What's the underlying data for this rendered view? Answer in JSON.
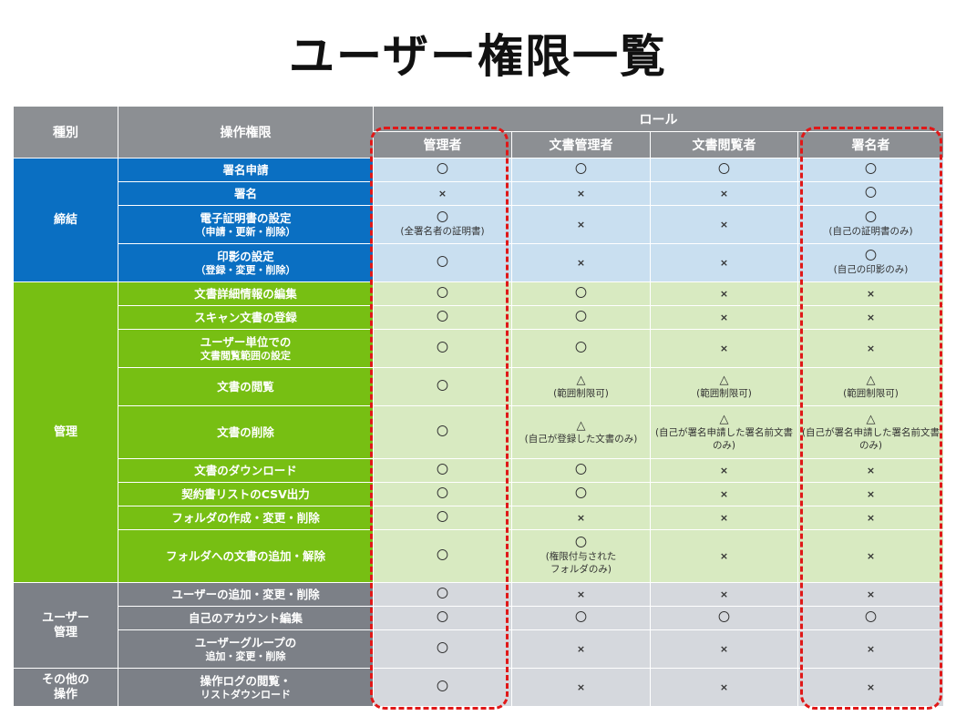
{
  "title": "ユーザー権限一覧",
  "headers": {
    "category": "種別",
    "operation": "操作権限",
    "role_group": "ロール",
    "roles": [
      "管理者",
      "文書管理者",
      "文書閲覧者",
      "署名者"
    ]
  },
  "symbols": {
    "yes": "〇",
    "no": "×",
    "partial": "△"
  },
  "groups": [
    {
      "label": "締結",
      "rows": [
        {
          "op": "署名申請",
          "cells": [
            {
              "sym": "〇"
            },
            {
              "sym": "〇"
            },
            {
              "sym": "〇"
            },
            {
              "sym": "〇"
            }
          ]
        },
        {
          "op": "署名",
          "cells": [
            {
              "sym": "×"
            },
            {
              "sym": "×"
            },
            {
              "sym": "×"
            },
            {
              "sym": "〇"
            }
          ]
        },
        {
          "op": "電子証明書の設定",
          "op_sub": "（申請・更新・削除）",
          "cells": [
            {
              "sym": "〇",
              "note": "(全署名者の証明書)"
            },
            {
              "sym": "×"
            },
            {
              "sym": "×"
            },
            {
              "sym": "〇",
              "note": "(自己の証明書のみ)"
            }
          ]
        },
        {
          "op": "印影の設定",
          "op_sub": "（登録・変更・削除）",
          "cells": [
            {
              "sym": "〇"
            },
            {
              "sym": "×"
            },
            {
              "sym": "×"
            },
            {
              "sym": "〇",
              "note": "(自己の印影のみ)"
            }
          ]
        }
      ]
    },
    {
      "label": "管理",
      "rows": [
        {
          "op": "文書詳細情報の編集",
          "cells": [
            {
              "sym": "〇"
            },
            {
              "sym": "〇"
            },
            {
              "sym": "×"
            },
            {
              "sym": "×"
            }
          ]
        },
        {
          "op": "スキャン文書の登録",
          "cells": [
            {
              "sym": "〇"
            },
            {
              "sym": "〇"
            },
            {
              "sym": "×"
            },
            {
              "sym": "×"
            }
          ]
        },
        {
          "op": "ユーザー単位での",
          "op_sub": "文書閲覧範囲の設定",
          "cells": [
            {
              "sym": "〇"
            },
            {
              "sym": "〇"
            },
            {
              "sym": "×"
            },
            {
              "sym": "×"
            }
          ]
        },
        {
          "op": "文書の閲覧",
          "cells": [
            {
              "sym": "〇"
            },
            {
              "sym": "△",
              "note": "(範囲制限可)"
            },
            {
              "sym": "△",
              "note": "(範囲制限可)"
            },
            {
              "sym": "△",
              "note": "(範囲制限可)"
            }
          ]
        },
        {
          "op": "文書の削除",
          "cells": [
            {
              "sym": "〇"
            },
            {
              "sym": "△",
              "note": "(自己が登録した文書のみ)"
            },
            {
              "sym": "△",
              "note": "(自己が署名申請した署名前文書のみ)"
            },
            {
              "sym": "△",
              "note": "(自己が署名申請した署名前文書のみ)"
            }
          ]
        },
        {
          "op": "文書のダウンロード",
          "cells": [
            {
              "sym": "〇"
            },
            {
              "sym": "〇"
            },
            {
              "sym": "×"
            },
            {
              "sym": "×"
            }
          ]
        },
        {
          "op": "契約書リストのCSV出力",
          "cells": [
            {
              "sym": "〇"
            },
            {
              "sym": "〇"
            },
            {
              "sym": "×"
            },
            {
              "sym": "×"
            }
          ]
        },
        {
          "op": "フォルダの作成・変更・削除",
          "cells": [
            {
              "sym": "〇"
            },
            {
              "sym": "×"
            },
            {
              "sym": "×"
            },
            {
              "sym": "×"
            }
          ]
        },
        {
          "op": "フォルダへの文書の追加・解除",
          "cells": [
            {
              "sym": "〇"
            },
            {
              "sym": "〇",
              "note": "(権限付与された",
              "note2": "フォルダのみ)"
            },
            {
              "sym": "×"
            },
            {
              "sym": "×"
            }
          ]
        }
      ]
    },
    {
      "label": "ユーザー",
      "label2": "管理",
      "rows": [
        {
          "op": "ユーザーの追加・変更・削除",
          "cells": [
            {
              "sym": "〇"
            },
            {
              "sym": "×"
            },
            {
              "sym": "×"
            },
            {
              "sym": "×"
            }
          ]
        },
        {
          "op": "自己のアカウント編集",
          "cells": [
            {
              "sym": "〇"
            },
            {
              "sym": "〇"
            },
            {
              "sym": "〇"
            },
            {
              "sym": "〇"
            }
          ]
        },
        {
          "op": "ユーザーグループの",
          "op_sub": "追加・変更・削除",
          "cells": [
            {
              "sym": "〇"
            },
            {
              "sym": "×"
            },
            {
              "sym": "×"
            },
            {
              "sym": "×"
            }
          ]
        }
      ]
    },
    {
      "label": "その他の",
      "label2": "操作",
      "rows": [
        {
          "op": "操作ログの閲覧・",
          "op_sub": "リストダウンロード",
          "cells": [
            {
              "sym": "〇"
            },
            {
              "sym": "×"
            },
            {
              "sym": "×"
            },
            {
              "sym": "×"
            }
          ]
        }
      ]
    }
  ],
  "highlight_color": "#e01818"
}
